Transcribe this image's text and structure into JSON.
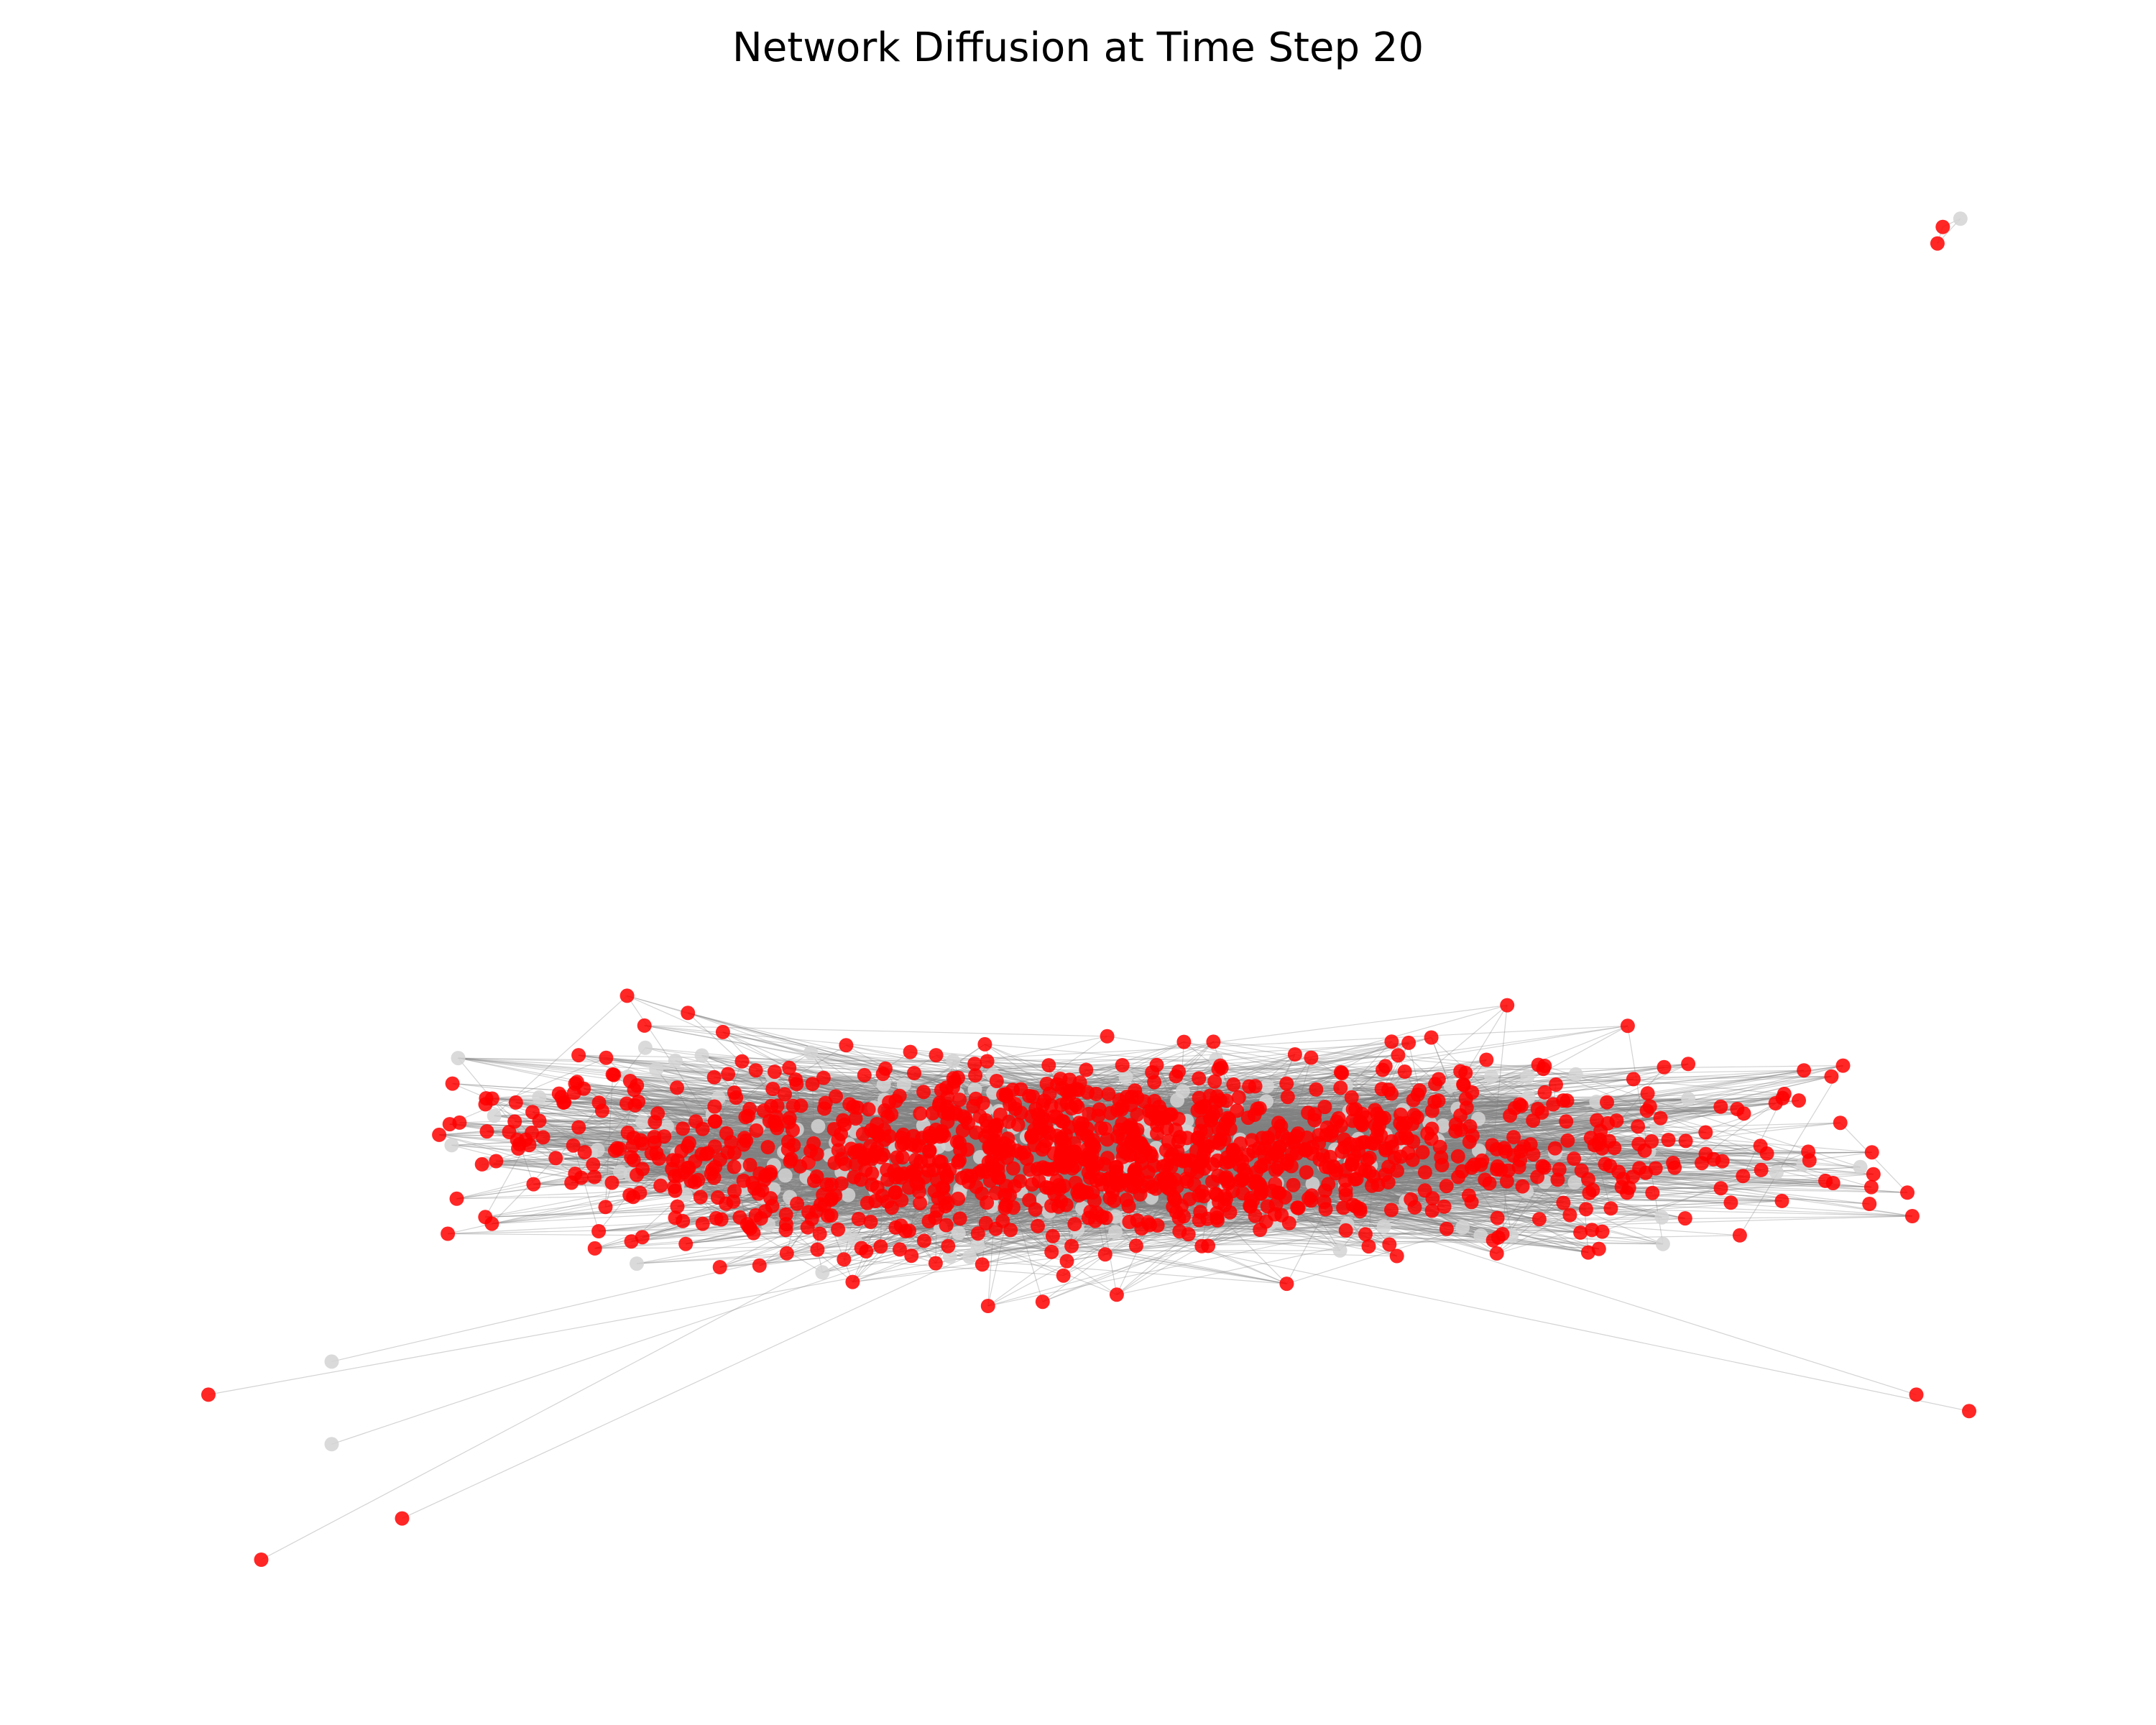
{
  "title": "Network Diffusion at Time Step 20",
  "legend": {
    "infected": {
      "color": "#ff0000"
    },
    "susceptible": {
      "color": "#d3d3d3"
    }
  },
  "edge_color": "#808080",
  "chart_data": {
    "type": "scatter",
    "title": "Network Diffusion at Time Step 20",
    "axes": "off",
    "grid": false,
    "legend": "none",
    "time_step": 20,
    "outlier_nodes": [
      {
        "x": 0.985,
        "y": 0.995,
        "state": "infected"
      },
      {
        "x": 0.995,
        "y": 1.005,
        "state": "susceptible"
      },
      {
        "x": 0.982,
        "y": 0.975,
        "state": "infected"
      },
      {
        "x": 0.0,
        "y": -0.42,
        "state": "infected"
      },
      {
        "x": 0.03,
        "y": -0.62,
        "state": "infected"
      },
      {
        "x": 0.11,
        "y": -0.57,
        "state": "infected"
      },
      {
        "x": 0.07,
        "y": -0.38,
        "state": "susceptible"
      },
      {
        "x": 0.07,
        "y": -0.48,
        "state": "susceptible"
      },
      {
        "x": 1.0,
        "y": -0.44,
        "state": "infected"
      },
      {
        "x": 0.97,
        "y": -0.42,
        "state": "infected"
      }
    ]
  }
}
